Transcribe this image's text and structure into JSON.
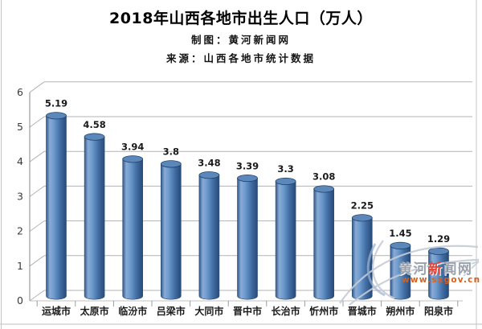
{
  "header": {
    "title": "2018年山西各地市出生人口（万人）",
    "credit": "制图：黄河新闻网",
    "source": "来源：山西各地市统计数据"
  },
  "chart_data": {
    "type": "bar",
    "style": "3d-cylinder",
    "title": "2018年山西各地市出生人口（万人）",
    "categories": [
      "运城市",
      "太原市",
      "临汾市",
      "吕梁市",
      "大同市",
      "晋中市",
      "长治市",
      "忻州市",
      "晋城市",
      "朔州市",
      "阳泉市"
    ],
    "values": [
      5.19,
      4.58,
      3.94,
      3.8,
      3.48,
      3.39,
      3.3,
      3.08,
      2.25,
      1.45,
      1.29
    ],
    "value_labels": [
      "5.19",
      "4.58",
      "3.94",
      "3.8",
      "3.48",
      "3.39",
      "3.3",
      "3.08",
      "2.25",
      "1.45",
      "1.29"
    ],
    "xlabel": "",
    "ylabel": "",
    "ylim": [
      0,
      6
    ],
    "ytick_interval": 1,
    "grid": true,
    "legend": "none",
    "bar_color": "#4f81bd",
    "bar_edge_color": "#2c4d75",
    "grid_color": "#b3b3b3",
    "label_color": "#1a1a1a"
  },
  "watermark": {
    "prefix": "黄河",
    "highlight": "新",
    "suffix": "闻网",
    "url": "www.sxgov.cn"
  }
}
